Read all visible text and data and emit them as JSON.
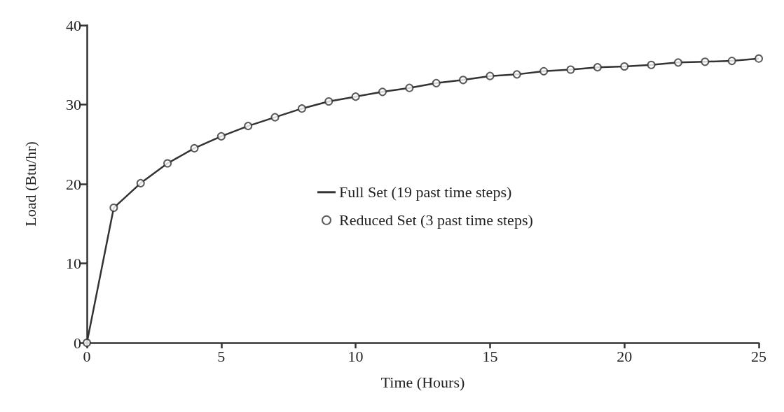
{
  "chart_data": {
    "type": "line",
    "xlabel": "Time (Hours)",
    "ylabel": "Load (Btu/hr)",
    "x": [
      0,
      1,
      2,
      3,
      4,
      5,
      6,
      7,
      8,
      9,
      10,
      11,
      12,
      13,
      14,
      15,
      16,
      17,
      18,
      19,
      20,
      21,
      22,
      23,
      24,
      25
    ],
    "series": [
      {
        "name": "Full Set (19 past time steps)",
        "marker": "none",
        "color": "#333333",
        "values": [
          0,
          17.0,
          20.1,
          22.6,
          24.5,
          26.0,
          27.3,
          28.4,
          29.5,
          30.4,
          31.0,
          31.6,
          32.1,
          32.7,
          33.1,
          33.6,
          33.8,
          34.2,
          34.4,
          34.7,
          34.8,
          35.0,
          35.3,
          35.4,
          35.5,
          35.8
        ]
      },
      {
        "name": "Reduced Set (3 past time steps)",
        "type": "scatter",
        "marker": "circle",
        "color": "#333333",
        "values": [
          0,
          17.0,
          20.1,
          22.6,
          24.5,
          26.0,
          27.3,
          28.4,
          29.5,
          30.4,
          31.0,
          31.6,
          32.1,
          32.7,
          33.1,
          33.6,
          33.8,
          34.2,
          34.4,
          34.7,
          34.8,
          35.0,
          35.3,
          35.4,
          35.5,
          35.8
        ]
      }
    ],
    "xlim": [
      0,
      25
    ],
    "xticks": [
      0,
      5,
      10,
      15,
      20,
      25
    ],
    "ylim": [
      0,
      40
    ],
    "yticks": [
      0,
      10,
      20,
      30,
      40
    ],
    "grid": false,
    "legend": "center",
    "line_style": "solid"
  }
}
